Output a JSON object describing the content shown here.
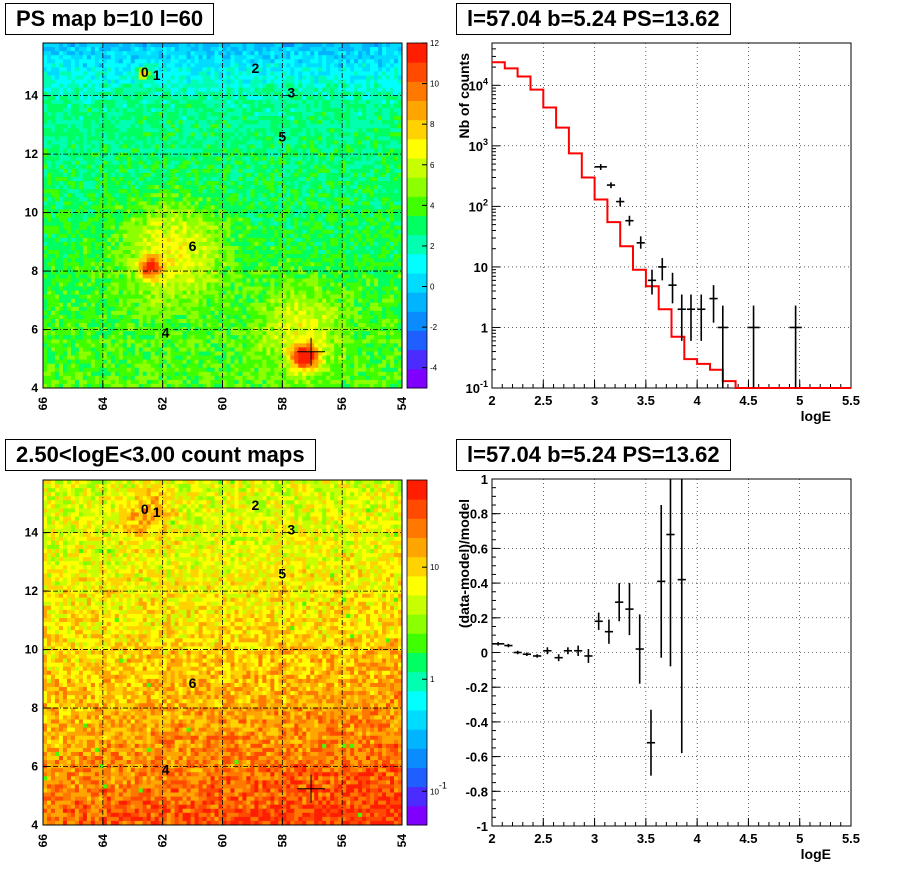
{
  "panels": {
    "ps_map_title": "PS map b=10 l=60",
    "spectrum_title": "l=57.04 b=5.24 PS=13.62",
    "count_map_title": "2.50<logE<3.00 count maps",
    "residual_title": "l=57.04 b=5.24 PS=13.62"
  },
  "chart_data": [
    {
      "type": "heatmap",
      "name": "ps-map",
      "x_ticks": [
        "66",
        "64",
        "62",
        "60",
        "58",
        "56",
        "54"
      ],
      "x_tick_values": [
        66,
        64,
        62,
        60,
        58,
        56,
        54
      ],
      "y_ticks": [
        "4",
        "6",
        "8",
        "10",
        "12",
        "14"
      ],
      "y_tick_values": [
        4,
        6,
        8,
        10,
        12,
        14
      ],
      "xlim": [
        66,
        54
      ],
      "ylim": [
        4,
        15.8
      ],
      "colorbar": {
        "ticks": [
          "12",
          "10",
          "8",
          "6",
          "4",
          "2",
          "0",
          "-2",
          "-4"
        ],
        "tick_values": [
          12,
          10,
          8,
          6,
          4,
          2,
          0,
          -2,
          -4
        ],
        "range": [
          -5,
          12
        ],
        "colors": [
          "#7f00ff",
          "#4b2bff",
          "#1f5fff",
          "#0a8cff",
          "#00b4ff",
          "#00dcff",
          "#00ffff",
          "#00ffb0",
          "#00ff60",
          "#3fff00",
          "#8cff00",
          "#c8ff00",
          "#ffff00",
          "#ffd200",
          "#ffa500",
          "#ff7800",
          "#ff4a00",
          "#ff1e00"
        ]
      },
      "source_labels": [
        {
          "label": "0",
          "l": 62.6,
          "b": 14.8
        },
        {
          "label": "1",
          "l": 62.2,
          "b": 14.7
        },
        {
          "label": "2",
          "l": 58.9,
          "b": 14.95
        },
        {
          "label": "3",
          "l": 57.7,
          "b": 14.1
        },
        {
          "label": "5",
          "l": 58.0,
          "b": 12.6
        },
        {
          "label": "6",
          "l": 61.0,
          "b": 8.85
        },
        {
          "label": "4",
          "l": 61.9,
          "b": 5.9
        }
      ],
      "marker": {
        "l": 57.04,
        "b": 5.24
      },
      "grid": true
    },
    {
      "type": "line",
      "name": "spectrum",
      "xlabel": "logE",
      "ylabel": "Nb of counts",
      "xlim": [
        2,
        5.5
      ],
      "ylim": [
        0.1,
        50000
      ],
      "log_y": true,
      "x_ticks": [
        "2",
        "2.5",
        "3",
        "3.5",
        "4",
        "4.5",
        "5",
        "5.5"
      ],
      "x_tick_values": [
        2,
        2.5,
        3,
        3.5,
        4,
        4.5,
        5,
        5.5
      ],
      "y_ticks": [
        "10^-1",
        "1",
        "10",
        "10^2",
        "10^3",
        "10^4"
      ],
      "y_tick_values": [
        0.1,
        1,
        10,
        100,
        1000,
        10000
      ],
      "grid": true,
      "model": {
        "color": "#ff0000",
        "bin_edges": [
          2.0,
          2.125,
          2.25,
          2.375,
          2.5,
          2.625,
          2.75,
          2.875,
          3.0,
          3.125,
          3.25,
          3.375,
          3.5,
          3.625,
          3.75,
          3.875,
          4.0,
          4.125,
          4.25,
          4.375,
          5.5
        ],
        "values": [
          24000,
          19000,
          14000,
          8500,
          4300,
          2000,
          750,
          300,
          130,
          55,
          22,
          9,
          4.8,
          2,
          0.7,
          0.3,
          0.25,
          0.2,
          0.13,
          0.1
        ]
      },
      "data": {
        "color": "#000000",
        "points": [
          {
            "x": 3.06,
            "y": 450,
            "xerr": 0.06,
            "ylo": 400,
            "yhi": 500
          },
          {
            "x": 3.16,
            "y": 225,
            "xerr": 0.04,
            "ylo": 200,
            "yhi": 250
          },
          {
            "x": 3.25,
            "y": 120,
            "xerr": 0.04,
            "ylo": 100,
            "yhi": 140
          },
          {
            "x": 3.34,
            "y": 58,
            "xerr": 0.04,
            "ylo": 48,
            "yhi": 70
          },
          {
            "x": 3.45,
            "y": 25,
            "xerr": 0.04,
            "ylo": 20,
            "yhi": 32
          },
          {
            "x": 3.56,
            "y": 6,
            "xerr": 0.04,
            "ylo": 3.5,
            "yhi": 9
          },
          {
            "x": 3.66,
            "y": 10,
            "xerr": 0.04,
            "ylo": 6,
            "yhi": 14
          },
          {
            "x": 3.76,
            "y": 5,
            "xerr": 0.04,
            "ylo": 2.5,
            "yhi": 8
          },
          {
            "x": 3.85,
            "y": 2,
            "xerr": 0.04,
            "ylo": 0.6,
            "yhi": 3.5
          },
          {
            "x": 3.94,
            "y": 2,
            "xerr": 0.04,
            "ylo": 0.6,
            "yhi": 3.5
          },
          {
            "x": 4.04,
            "y": 2,
            "xerr": 0.04,
            "ylo": 0.6,
            "yhi": 3.5
          },
          {
            "x": 4.16,
            "y": 3,
            "xerr": 0.04,
            "ylo": 1.2,
            "yhi": 5
          },
          {
            "x": 4.25,
            "y": 1,
            "xerr": 0.05,
            "ylo": 0.1,
            "yhi": 2.3
          },
          {
            "x": 4.55,
            "y": 1,
            "xerr": 0.06,
            "ylo": 0.1,
            "yhi": 2.3
          },
          {
            "x": 4.96,
            "y": 1,
            "xerr": 0.06,
            "ylo": 0.1,
            "yhi": 2.3
          }
        ]
      }
    },
    {
      "type": "heatmap",
      "name": "count-map",
      "x_ticks": [
        "66",
        "64",
        "62",
        "60",
        "58",
        "56",
        "54"
      ],
      "x_tick_values": [
        66,
        64,
        62,
        60,
        58,
        56,
        54
      ],
      "y_ticks": [
        "4",
        "6",
        "8",
        "10",
        "12",
        "14"
      ],
      "y_tick_values": [
        4,
        6,
        8,
        10,
        12,
        14
      ],
      "xlim": [
        66,
        54
      ],
      "ylim": [
        4,
        15.8
      ],
      "colorbar": {
        "ticks": [
          "10",
          "1",
          "10^-1"
        ],
        "tick_values": [
          10,
          1,
          0.1
        ],
        "range": [
          0.05,
          60
        ],
        "log": true,
        "colors": [
          "#7f00ff",
          "#4b2bff",
          "#1f5fff",
          "#0a8cff",
          "#00b4ff",
          "#00dcff",
          "#00ffff",
          "#00ffb0",
          "#00ff60",
          "#3fff00",
          "#8cff00",
          "#c8ff00",
          "#ffff00",
          "#ffd200",
          "#ffa500",
          "#ff7800",
          "#ff4a00",
          "#ff1e00"
        ]
      },
      "source_labels": [
        {
          "label": "0",
          "l": 62.6,
          "b": 14.8
        },
        {
          "label": "1",
          "l": 62.2,
          "b": 14.7
        },
        {
          "label": "2",
          "l": 58.9,
          "b": 14.95
        },
        {
          "label": "3",
          "l": 57.7,
          "b": 14.1
        },
        {
          "label": "5",
          "l": 58.0,
          "b": 12.6
        },
        {
          "label": "6",
          "l": 61.0,
          "b": 8.85
        },
        {
          "label": "4",
          "l": 61.9,
          "b": 5.9
        }
      ],
      "marker": {
        "l": 57.04,
        "b": 5.24
      },
      "grid": true
    },
    {
      "type": "scatter",
      "name": "residuals",
      "xlabel": "logE",
      "ylabel": "(data-model)/model",
      "xlim": [
        2,
        5.5
      ],
      "ylim": [
        -1,
        1
      ],
      "x_ticks": [
        "2",
        "2.5",
        "3",
        "3.5",
        "4",
        "4.5",
        "5",
        "5.5"
      ],
      "x_tick_values": [
        2,
        2.5,
        3,
        3.5,
        4,
        4.5,
        5,
        5.5
      ],
      "y_ticks": [
        "-1",
        "-0.8",
        "-0.6",
        "-0.4",
        "-0.2",
        "0",
        "0.2",
        "0.4",
        "0.6",
        "0.8",
        "1"
      ],
      "y_tick_values": [
        -1,
        -0.8,
        -0.6,
        -0.4,
        -0.2,
        0,
        0.2,
        0.4,
        0.6,
        0.8,
        1
      ],
      "grid": true,
      "points": [
        {
          "x": 2.06,
          "y": 0.05,
          "xerr": 0.06,
          "ylo": 0.04,
          "yhi": 0.06
        },
        {
          "x": 2.16,
          "y": 0.04,
          "xerr": 0.04,
          "ylo": 0.03,
          "yhi": 0.05
        },
        {
          "x": 2.25,
          "y": 0.0,
          "xerr": 0.04,
          "ylo": -0.01,
          "yhi": 0.01
        },
        {
          "x": 2.34,
          "y": -0.01,
          "xerr": 0.04,
          "ylo": -0.02,
          "yhi": 0.0
        },
        {
          "x": 2.44,
          "y": -0.02,
          "xerr": 0.04,
          "ylo": -0.03,
          "yhi": -0.01
        },
        {
          "x": 2.54,
          "y": 0.01,
          "xerr": 0.04,
          "ylo": -0.01,
          "yhi": 0.03
        },
        {
          "x": 2.65,
          "y": -0.03,
          "xerr": 0.04,
          "ylo": -0.05,
          "yhi": -0.01
        },
        {
          "x": 2.74,
          "y": 0.01,
          "xerr": 0.04,
          "ylo": -0.01,
          "yhi": 0.03
        },
        {
          "x": 2.84,
          "y": 0.01,
          "xerr": 0.04,
          "ylo": -0.02,
          "yhi": 0.04
        },
        {
          "x": 2.94,
          "y": -0.02,
          "xerr": 0.04,
          "ylo": -0.06,
          "yhi": 0.02
        },
        {
          "x": 3.04,
          "y": 0.18,
          "xerr": 0.04,
          "ylo": 0.13,
          "yhi": 0.23
        },
        {
          "x": 3.14,
          "y": 0.12,
          "xerr": 0.04,
          "ylo": 0.05,
          "yhi": 0.19
        },
        {
          "x": 3.24,
          "y": 0.29,
          "xerr": 0.04,
          "ylo": 0.18,
          "yhi": 0.4
        },
        {
          "x": 3.34,
          "y": 0.25,
          "xerr": 0.04,
          "ylo": 0.1,
          "yhi": 0.4
        },
        {
          "x": 3.44,
          "y": 0.02,
          "xerr": 0.04,
          "ylo": -0.18,
          "yhi": 0.22
        },
        {
          "x": 3.55,
          "y": -0.52,
          "xerr": 0.04,
          "ylo": -0.71,
          "yhi": -0.33
        },
        {
          "x": 3.65,
          "y": 0.41,
          "xerr": 0.04,
          "ylo": -0.03,
          "yhi": 0.85
        },
        {
          "x": 3.74,
          "y": 0.68,
          "xerr": 0.04,
          "ylo": -0.08,
          "yhi": 1.0
        },
        {
          "x": 3.85,
          "y": 0.42,
          "xerr": 0.04,
          "ylo": -0.58,
          "yhi": 1.0
        }
      ]
    }
  ]
}
